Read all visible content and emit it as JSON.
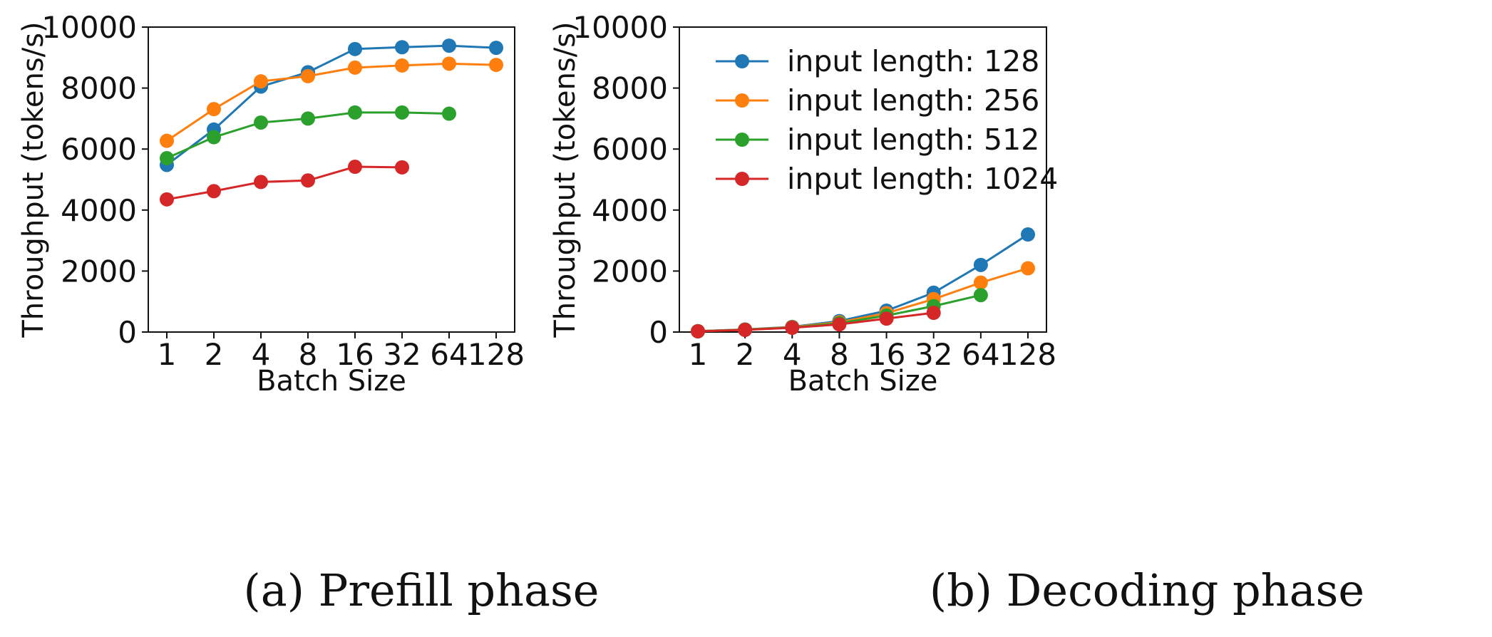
{
  "chart_data": [
    {
      "type": "line",
      "id": "prefill",
      "caption": "(a) Prefill phase",
      "xlabel": "Batch Size",
      "ylabel": "Throughput (tokens/s)",
      "categories": [
        "1",
        "2",
        "4",
        "8",
        "16",
        "32",
        "64",
        "128"
      ],
      "ylim": [
        0,
        10000
      ],
      "yticks": [
        "0",
        "2000",
        "4000",
        "6000",
        "8000",
        "10000"
      ],
      "grid": false,
      "series": [
        {
          "name": "input length: 128",
          "color": "#1f77b4",
          "values": [
            5480,
            6640,
            8050,
            8520,
            9280,
            9340,
            9390,
            9320
          ]
        },
        {
          "name": "input length: 256",
          "color": "#ff7f0e",
          "values": [
            6270,
            7310,
            8220,
            8390,
            8670,
            8740,
            8800,
            8760
          ]
        },
        {
          "name": "input length: 512",
          "color": "#2ca02c",
          "values": [
            5700,
            6390,
            6870,
            7000,
            7200,
            7200,
            7160,
            null
          ]
        },
        {
          "name": "input length: 1024",
          "color": "#d62728",
          "values": [
            4350,
            4620,
            4920,
            4970,
            5420,
            5400,
            null,
            null
          ]
        }
      ]
    },
    {
      "type": "line",
      "id": "decoding",
      "caption": "(b) Decoding phase",
      "xlabel": "Batch Size",
      "ylabel": "Throughput (tokens/s)",
      "categories": [
        "1",
        "2",
        "4",
        "8",
        "16",
        "32",
        "64",
        "128"
      ],
      "ylim": [
        0,
        10000
      ],
      "yticks": [
        "0",
        "2000",
        "4000",
        "6000",
        "8000",
        "10000"
      ],
      "grid": false,
      "legend": "top-right",
      "series": [
        {
          "name": "input length: 128",
          "color": "#1f77b4",
          "values": [
            30,
            85,
            170,
            360,
            700,
            1290,
            2200,
            3200
          ]
        },
        {
          "name": "input length: 256",
          "color": "#ff7f0e",
          "values": [
            28,
            80,
            160,
            320,
            620,
            1080,
            1620,
            2090
          ]
        },
        {
          "name": "input length: 512",
          "color": "#2ca02c",
          "values": [
            26,
            75,
            150,
            290,
            540,
            850,
            1210,
            null
          ]
        },
        {
          "name": "input length: 1024",
          "color": "#d62728",
          "values": [
            24,
            70,
            140,
            250,
            440,
            630,
            null,
            null
          ]
        }
      ]
    }
  ]
}
